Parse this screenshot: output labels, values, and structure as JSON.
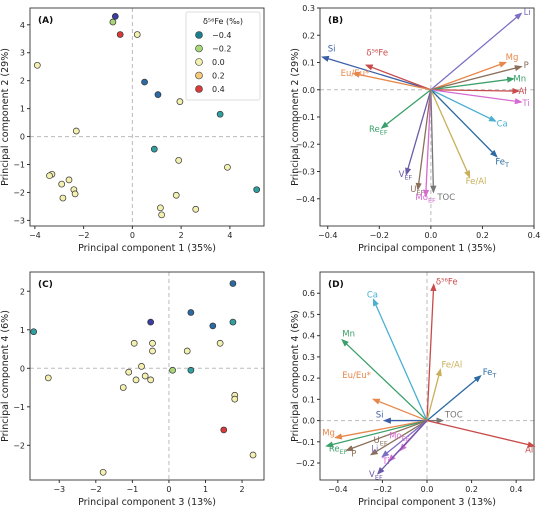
{
  "legend": {
    "title": "δ⁵⁶Fe (‰)",
    "entries": [
      {
        "label": "−0.4",
        "color": "#1b7f8e"
      },
      {
        "label": "−0.2",
        "color": "#a8d77a"
      },
      {
        "label": "0.0",
        "color": "#f3f0b0"
      },
      {
        "label": "0.2",
        "color": "#f4c97a"
      },
      {
        "label": "0.4",
        "color": "#d93a3a"
      }
    ]
  },
  "chart_data": [
    {
      "type": "scatter",
      "panel": "(A)",
      "xlabel": "Principal component 1 (35%)",
      "ylabel": "Principal component 2 (29%)",
      "xlim": [
        -4.2,
        5.4
      ],
      "ylim": [
        -3.2,
        4.6
      ],
      "xticks": [
        "−4",
        "−2",
        "0",
        "2",
        "4"
      ],
      "xtick_values": [
        -4,
        -2,
        0,
        2,
        4
      ],
      "yticks": [
        "−3",
        "−2",
        "−1",
        "0",
        "1",
        "2",
        "3",
        "4"
      ],
      "ytick_values": [
        -3,
        -2,
        -1,
        0,
        1,
        2,
        3,
        4
      ],
      "points": [
        {
          "x": -0.7,
          "y": 4.3,
          "c": "#3b3ea0"
        },
        {
          "x": -0.8,
          "y": 4.1,
          "c": "#a8d77a"
        },
        {
          "x": -0.5,
          "y": 3.65,
          "c": "#d93a3a"
        },
        {
          "x": 0.2,
          "y": 3.65,
          "c": "#f3f0b0"
        },
        {
          "x": -3.9,
          "y": 2.55,
          "c": "#f3f0b0"
        },
        {
          "x": 0.5,
          "y": 1.95,
          "c": "#2b6aa3"
        },
        {
          "x": 1.05,
          "y": 1.5,
          "c": "#2b6aa3"
        },
        {
          "x": 1.95,
          "y": 1.25,
          "c": "#f3f0b0"
        },
        {
          "x": -2.3,
          "y": 0.2,
          "c": "#f3f0b0"
        },
        {
          "x": 3.6,
          "y": 0.8,
          "c": "#2f9f9f"
        },
        {
          "x": 0.9,
          "y": -0.45,
          "c": "#2f9f9f"
        },
        {
          "x": 1.9,
          "y": -0.85,
          "c": "#f3f0b0"
        },
        {
          "x": 3.9,
          "y": -1.1,
          "c": "#f3f0b0"
        },
        {
          "x": 5.1,
          "y": -1.9,
          "c": "#2f9f9f"
        },
        {
          "x": -3.3,
          "y": -1.35,
          "c": "#f3f0b0"
        },
        {
          "x": -3.4,
          "y": -1.4,
          "c": "#f3f0b0"
        },
        {
          "x": -2.6,
          "y": -1.55,
          "c": "#f3f0b0"
        },
        {
          "x": -2.9,
          "y": -1.7,
          "c": "#f3f0b0"
        },
        {
          "x": -2.4,
          "y": -1.9,
          "c": "#f3f0b0"
        },
        {
          "x": -2.35,
          "y": -2.05,
          "c": "#f3f0b0"
        },
        {
          "x": -2.85,
          "y": -2.2,
          "c": "#f3f0b0"
        },
        {
          "x": 1.8,
          "y": -2.1,
          "c": "#f3f0b0"
        },
        {
          "x": 1.15,
          "y": -2.55,
          "c": "#f3f0b0"
        },
        {
          "x": 2.6,
          "y": -2.6,
          "c": "#f3f0b0"
        },
        {
          "x": 1.2,
          "y": -2.8,
          "c": "#f3f0b0"
        }
      ]
    },
    {
      "type": "biplot",
      "panel": "(B)",
      "xlabel": "Principal component 1 (35%)",
      "ylabel": "Principal component 2 (29%)",
      "xlim": [
        -0.43,
        0.4
      ],
      "ylim": [
        -0.5,
        0.3
      ],
      "xticks": [
        "−0.4",
        "−0.2",
        "0.0",
        "0.2",
        "0.4"
      ],
      "xtick_values": [
        -0.4,
        -0.2,
        0,
        0.2,
        0.4
      ],
      "yticks": [
        "−0.4",
        "−0.3",
        "−0.2",
        "−0.1",
        "0.0",
        "0.1",
        "0.2",
        "0.3"
      ],
      "ytick_values": [
        -0.4,
        -0.3,
        -0.2,
        -0.1,
        0,
        0.1,
        0.2,
        0.3
      ],
      "vectors": [
        {
          "label": "Si",
          "x": -0.42,
          "y": 0.12,
          "color": "#3a5fa8",
          "lx": -0.4,
          "ly": 0.14
        },
        {
          "label": "δ⁵⁶Fe",
          "x": -0.25,
          "y": 0.09,
          "color": "#c94a4a",
          "lx": -0.25,
          "ly": 0.125
        },
        {
          "label": "Eu/Eu*",
          "x": -0.3,
          "y": 0.06,
          "color": "#e8874a",
          "lx": -0.35,
          "ly": 0.05
        },
        {
          "label": "Li",
          "x": 0.35,
          "y": 0.28,
          "color": "#7b6fc4",
          "lx": 0.36,
          "ly": 0.275
        },
        {
          "label": "Mg",
          "x": 0.29,
          "y": 0.1,
          "color": "#e8874a",
          "lx": 0.29,
          "ly": 0.11
        },
        {
          "label": "P",
          "x": 0.35,
          "y": 0.085,
          "color": "#8a6f5a",
          "lx": 0.36,
          "ly": 0.08
        },
        {
          "label": "Mn",
          "x": 0.32,
          "y": 0.04,
          "color": "#3aa06a",
          "lx": 0.32,
          "ly": 0.03
        },
        {
          "label": "Al",
          "x": 0.34,
          "y": -0.005,
          "color": "#c94a4a",
          "lx": 0.34,
          "ly": -0.015
        },
        {
          "label": "Ti",
          "x": 0.35,
          "y": -0.045,
          "color": "#d66bd1",
          "lx": 0.355,
          "ly": -0.06
        },
        {
          "label": "Ca",
          "x": 0.25,
          "y": -0.115,
          "color": "#4ab0d0",
          "lx": 0.255,
          "ly": -0.135
        },
        {
          "label": "Fe_T",
          "x": 0.255,
          "y": -0.245,
          "color": "#2b6aa3",
          "lx": 0.25,
          "ly": -0.275
        },
        {
          "label": "Fe/Al",
          "x": 0.15,
          "y": -0.32,
          "color": "#c8b05a",
          "lx": 0.135,
          "ly": -0.345
        },
        {
          "label": "Re_EF",
          "x": -0.19,
          "y": -0.14,
          "color": "#3aa06a",
          "lx": -0.24,
          "ly": -0.155
        },
        {
          "label": "V_EF",
          "x": -0.095,
          "y": -0.31,
          "color": "#6a5aa8",
          "lx": -0.125,
          "ly": -0.32
        },
        {
          "label": "U_EF",
          "x": -0.05,
          "y": -0.365,
          "color": "#8a6f5a",
          "lx": -0.08,
          "ly": -0.375
        },
        {
          "label": "Mo_EF",
          "x": -0.02,
          "y": -0.39,
          "color": "#d66bd1",
          "lx": -0.06,
          "ly": -0.405
        },
        {
          "label": "TOC",
          "x": 0.01,
          "y": -0.375,
          "color": "#777777",
          "lx": 0.025,
          "ly": -0.405
        }
      ]
    },
    {
      "type": "scatter",
      "panel": "(C)",
      "xlabel": "Principal component 3 (13%)",
      "ylabel": "Principal component 4 (6%)",
      "xlim": [
        -3.8,
        2.6
      ],
      "ylim": [
        -2.9,
        2.5
      ],
      "xticks": [
        "−3",
        "−2",
        "−1",
        "0",
        "1",
        "2"
      ],
      "xtick_values": [
        -3,
        -2,
        -1,
        0,
        1,
        2
      ],
      "yticks": [
        "−2",
        "−1",
        "0",
        "1",
        "2"
      ],
      "ytick_values": [
        -2,
        -1,
        0,
        1,
        2
      ],
      "points": [
        {
          "x": 1.75,
          "y": 2.2,
          "c": "#2b6aa3"
        },
        {
          "x": -3.7,
          "y": 0.95,
          "c": "#2f9f9f"
        },
        {
          "x": 0.6,
          "y": 1.45,
          "c": "#2b6aa3"
        },
        {
          "x": -0.5,
          "y": 1.2,
          "c": "#3b3ea0"
        },
        {
          "x": 1.75,
          "y": 1.2,
          "c": "#2f9f9f"
        },
        {
          "x": 1.2,
          "y": 1.1,
          "c": "#2b6aa3"
        },
        {
          "x": 1.4,
          "y": 0.65,
          "c": "#f3f0b0"
        },
        {
          "x": -0.95,
          "y": 0.65,
          "c": "#f3f0b0"
        },
        {
          "x": -0.45,
          "y": 0.65,
          "c": "#f3f0b0"
        },
        {
          "x": -0.45,
          "y": 0.45,
          "c": "#f3f0b0"
        },
        {
          "x": 0.5,
          "y": 0.45,
          "c": "#f3f0b0"
        },
        {
          "x": -0.75,
          "y": 0.05,
          "c": "#f3f0b0"
        },
        {
          "x": -1.1,
          "y": -0.1,
          "c": "#f3f0b0"
        },
        {
          "x": -0.65,
          "y": -0.2,
          "c": "#f3f0b0"
        },
        {
          "x": -0.5,
          "y": -0.3,
          "c": "#f3f0b0"
        },
        {
          "x": -0.9,
          "y": -0.3,
          "c": "#f3f0b0"
        },
        {
          "x": -3.3,
          "y": -0.25,
          "c": "#f3f0b0"
        },
        {
          "x": 0.1,
          "y": -0.05,
          "c": "#a8d77a"
        },
        {
          "x": 0.6,
          "y": -0.05,
          "c": "#2f9f9f"
        },
        {
          "x": -1.25,
          "y": -0.5,
          "c": "#f3f0b0"
        },
        {
          "x": 1.8,
          "y": -0.7,
          "c": "#f3f0b0"
        },
        {
          "x": 1.8,
          "y": -0.8,
          "c": "#f3f0b0"
        },
        {
          "x": 1.5,
          "y": -1.6,
          "c": "#d93a3a"
        },
        {
          "x": 2.3,
          "y": -2.25,
          "c": "#f3f0b0"
        },
        {
          "x": -1.8,
          "y": -2.7,
          "c": "#f3f0b0"
        }
      ]
    },
    {
      "type": "biplot",
      "panel": "(D)",
      "xlabel": "Principal component 3 (13%)",
      "ylabel": "Principal component 4 (6%)",
      "xlim": [
        -0.48,
        0.48
      ],
      "ylim": [
        -0.28,
        0.7
      ],
      "xticks": [
        "−0.4",
        "−0.2",
        "0.0",
        "0.2",
        "0.4"
      ],
      "xtick_values": [
        -0.4,
        -0.2,
        0,
        0.2,
        0.4
      ],
      "yticks": [
        "−0.2",
        "−0.1",
        "0.0",
        "0.1",
        "0.2",
        "0.3",
        "0.4",
        "0.5",
        "0.6"
      ],
      "ytick_values": [
        -0.2,
        -0.1,
        0,
        0.1,
        0.2,
        0.3,
        0.4,
        0.5,
        0.6
      ],
      "vectors": [
        {
          "label": "δ⁵⁶Fe",
          "x": 0.03,
          "y": 0.64,
          "color": "#c94a4a",
          "lx": 0.04,
          "ly": 0.64
        },
        {
          "label": "Ca",
          "x": -0.24,
          "y": 0.57,
          "color": "#4ab0d0",
          "lx": -0.27,
          "ly": 0.58
        },
        {
          "label": "Mn",
          "x": -0.38,
          "y": 0.38,
          "color": "#3aa06a",
          "lx": -0.38,
          "ly": 0.395
        },
        {
          "label": "Fe/Al",
          "x": 0.06,
          "y": 0.24,
          "color": "#c8b05a",
          "lx": 0.065,
          "ly": 0.25
        },
        {
          "label": "Fe_T",
          "x": 0.24,
          "y": 0.21,
          "color": "#2b6aa3",
          "lx": 0.25,
          "ly": 0.215
        },
        {
          "label": "Eu/Eu*",
          "x": -0.24,
          "y": 0.1,
          "color": "#e8874a",
          "lx": -0.38,
          "ly": 0.2
        },
        {
          "label": "Si",
          "x": -0.19,
          "y": 0.0,
          "color": "#3a5fa8",
          "lx": -0.23,
          "ly": 0.015
        },
        {
          "label": "TOC",
          "x": 0.07,
          "y": 0.0,
          "color": "#777777",
          "lx": 0.08,
          "ly": 0.015
        },
        {
          "label": "Mg",
          "x": -0.41,
          "y": -0.08,
          "color": "#e8874a",
          "lx": -0.47,
          "ly": -0.07
        },
        {
          "label": "Re_EF",
          "x": -0.45,
          "y": -0.12,
          "color": "#3aa06a",
          "lx": -0.44,
          "ly": -0.145
        },
        {
          "label": "P",
          "x": -0.36,
          "y": -0.14,
          "color": "#8a6f5a",
          "lx": -0.34,
          "ly": -0.17
        },
        {
          "label": "U_EF",
          "x": -0.25,
          "y": -0.16,
          "color": "#8a6f5a",
          "lx": -0.24,
          "ly": -0.105
        },
        {
          "label": "Li",
          "x": -0.2,
          "y": -0.17,
          "color": "#7b6fc4",
          "lx": -0.25,
          "ly": -0.145
        },
        {
          "label": "Mo_EF",
          "x": -0.12,
          "y": -0.14,
          "color": "#d66bd1",
          "lx": -0.17,
          "ly": -0.085
        },
        {
          "label": "Ti",
          "x": -0.17,
          "y": -0.19,
          "color": "#d66bd1",
          "lx": -0.2,
          "ly": -0.205
        },
        {
          "label": "V_EF",
          "x": -0.22,
          "y": -0.25,
          "color": "#6a5aa8",
          "lx": -0.26,
          "ly": -0.265
        },
        {
          "label": "Al",
          "x": 0.48,
          "y": -0.12,
          "color": "#c94a4a",
          "lx": 0.44,
          "ly": -0.15
        }
      ]
    }
  ]
}
